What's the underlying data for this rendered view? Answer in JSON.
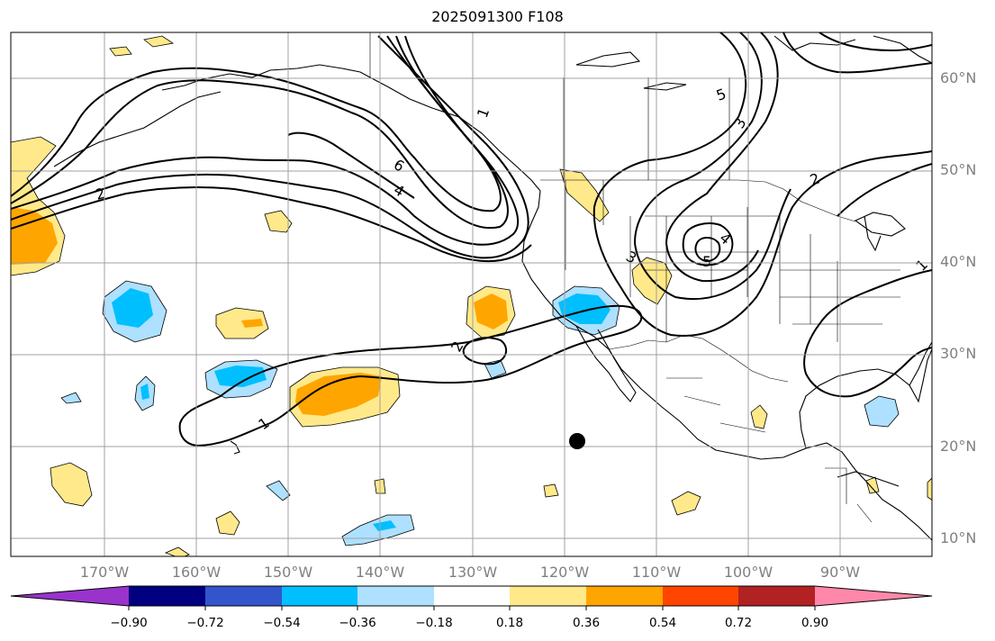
{
  "title": "2025091300 F108",
  "lat_labels": [
    "60°N",
    "50°N",
    "40°N",
    "30°N",
    "20°N",
    "10°N"
  ],
  "lon_labels": [
    "170°W",
    "160°W",
    "150°W",
    "140°W",
    "130°W",
    "120°W",
    "110°W",
    "100°W",
    "90°W"
  ],
  "colorbar": {
    "colors": [
      "#9933cc",
      "#000080",
      "#3355cc",
      "#00bfff",
      "#aee0ff",
      "#ffffff",
      "#ffe98a",
      "#ffa500",
      "#ff4500",
      "#b22222",
      "#ff88aa"
    ],
    "labels": [
      "−0.90",
      "−0.72",
      "−0.54",
      "−0.36",
      "−0.18",
      "0.18",
      "0.36",
      "0.54",
      "0.72",
      "0.90"
    ]
  },
  "contour_labels": [
    "1",
    "2",
    "3",
    "4",
    "5",
    "6",
    "1",
    "2",
    "3",
    "4",
    "5",
    "2",
    "1"
  ],
  "colors": {
    "positive_light": "#ffe98a",
    "positive_mid": "#ffa500",
    "negative_light": "#aee0ff",
    "negative_mid": "#00bfff",
    "grid": "#a0a0a0",
    "axis_text": "#808080"
  }
}
